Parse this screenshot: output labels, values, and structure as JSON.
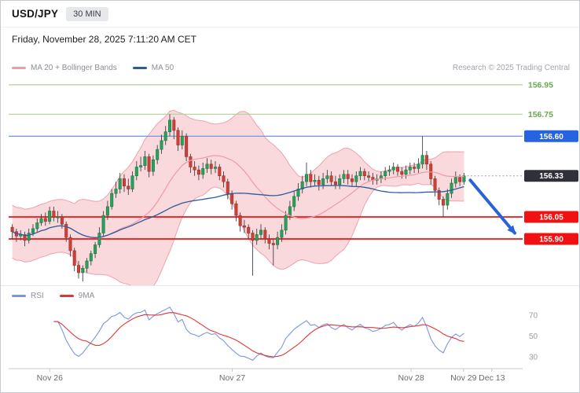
{
  "header": {
    "symbol": "USD/JPY",
    "timeframe": "30 MIN",
    "datetime": "Friday, November 28, 2025 7:11:20 AM CET"
  },
  "legend": {
    "ma20_label": "MA 20 + Bollinger Bands",
    "ma50_label": "MA 50",
    "copyright": "Research © 2025 Trading Central"
  },
  "rsi_legend": {
    "rsi_label": "RSI",
    "ma_label": "9MA"
  },
  "colors": {
    "up": "#2aa05b",
    "up_stroke": "#157a43",
    "down": "#cf4036",
    "down_stroke": "#9c2f27",
    "wick": "#3f4145",
    "ma20": "#ef9aa5",
    "ma50": "#2c5c9c",
    "band_fill": "#f3aab4",
    "band_edge": "#eda2ad",
    "rsi": "#7c96de",
    "rsi_ma": "#e23535",
    "axis": "#c6c8d0",
    "grid_text": "#9a9ba2",
    "dotted": "#9ba1a9",
    "arrow": "#2b62d6"
  },
  "chart_data": {
    "type": "candlestick",
    "symbol": "USD/JPY",
    "interval": "30 MIN",
    "y_range": [
      155.584,
      157.014
    ],
    "current_price": {
      "value": 156.33,
      "label": "156.33",
      "badge_color": "#30303a"
    },
    "levels": [
      {
        "value": 156.95,
        "label": "156.95",
        "type": "resistance",
        "label_style": "text",
        "line_color": "#b3d394",
        "text_color": "#6aa84f",
        "line_width": 1.2
      },
      {
        "value": 156.75,
        "label": "156.75",
        "type": "resistance",
        "label_style": "text",
        "line_color": "#b3d394",
        "text_color": "#6aa84f",
        "line_width": 1.2
      },
      {
        "value": 156.6,
        "label": "156.60",
        "type": "resistance",
        "label_style": "badge",
        "line_color": "#7b9be4",
        "badge_color": "#2563e0",
        "line_width": 1.4
      },
      {
        "value": 156.05,
        "label": "156.05",
        "type": "support",
        "label_style": "badge",
        "line_color": "#f01212",
        "badge_color": "#f01212",
        "line_width": 1.8
      },
      {
        "value": 155.9,
        "label": "155.90",
        "type": "support",
        "label_style": "badge",
        "line_color": "#f01212",
        "badge_color": "#f01212",
        "line_width": 1.8
      }
    ],
    "arrow": {
      "direction": "down",
      "from_price": 156.3,
      "to_price": 155.94
    },
    "x_axis": {
      "labels": [
        "Nov 26",
        "Nov 27",
        "Nov 28",
        "Nov 29",
        "Dec 13"
      ],
      "positions": [
        0.08,
        0.435,
        0.783,
        0.885,
        0.94
      ]
    },
    "indicators": {
      "ma20_period": 20,
      "ma50_period": 50,
      "bollinger_mult": 2,
      "rsi_period": 14,
      "rsi_ma_period": 9
    },
    "rsi_ticks": [
      70,
      50,
      30
    ],
    "candles": [
      [
        155.98,
        156.0,
        155.9,
        155.95
      ],
      [
        155.95,
        155.97,
        155.88,
        155.92
      ],
      [
        155.92,
        155.96,
        155.89,
        155.93
      ],
      [
        155.93,
        155.95,
        155.85,
        155.89
      ],
      [
        155.89,
        155.97,
        155.87,
        155.94
      ],
      [
        155.94,
        156.0,
        155.92,
        155.97
      ],
      [
        155.97,
        156.04,
        155.95,
        156.01
      ],
      [
        156.01,
        156.07,
        155.99,
        156.04
      ],
      [
        156.04,
        156.08,
        155.99,
        156.02
      ],
      [
        156.02,
        156.12,
        156.0,
        156.09
      ],
      [
        156.09,
        156.12,
        156.02,
        156.05
      ],
      [
        156.05,
        156.09,
        156.01,
        156.05
      ],
      [
        156.05,
        156.07,
        155.97,
        156.0
      ],
      [
        156.0,
        156.02,
        155.88,
        155.91
      ],
      [
        155.91,
        155.93,
        155.78,
        155.82
      ],
      [
        155.82,
        155.84,
        155.68,
        155.72
      ],
      [
        155.72,
        155.75,
        155.63,
        155.67
      ],
      [
        155.67,
        155.72,
        155.61,
        155.7
      ],
      [
        155.7,
        155.77,
        155.67,
        155.75
      ],
      [
        155.75,
        155.82,
        155.72,
        155.8
      ],
      [
        155.8,
        155.88,
        155.77,
        155.86
      ],
      [
        155.86,
        155.98,
        155.84,
        155.94
      ],
      [
        155.94,
        156.09,
        155.92,
        156.06
      ],
      [
        156.06,
        156.16,
        156.03,
        156.12
      ],
      [
        156.12,
        156.24,
        156.1,
        156.21
      ],
      [
        156.21,
        156.29,
        156.18,
        156.24
      ],
      [
        156.24,
        156.35,
        156.21,
        156.31
      ],
      [
        156.31,
        156.34,
        156.22,
        156.26
      ],
      [
        156.26,
        156.31,
        156.2,
        156.24
      ],
      [
        156.24,
        156.36,
        156.22,
        156.33
      ],
      [
        156.33,
        156.43,
        156.3,
        156.39
      ],
      [
        156.39,
        156.46,
        156.36,
        156.4
      ],
      [
        156.4,
        156.5,
        156.37,
        156.46
      ],
      [
        156.46,
        156.48,
        156.32,
        156.36
      ],
      [
        156.36,
        156.47,
        156.33,
        156.44
      ],
      [
        156.44,
        156.54,
        156.41,
        156.51
      ],
      [
        156.51,
        156.61,
        156.48,
        156.57
      ],
      [
        156.57,
        156.67,
        156.54,
        156.63
      ],
      [
        156.63,
        156.75,
        156.6,
        156.71
      ],
      [
        156.71,
        156.73,
        156.58,
        156.64
      ],
      [
        156.64,
        156.66,
        156.5,
        156.54
      ],
      [
        156.54,
        156.64,
        156.51,
        156.6
      ],
      [
        156.6,
        156.62,
        156.43,
        156.46
      ],
      [
        156.46,
        156.48,
        156.35,
        156.39
      ],
      [
        156.39,
        156.43,
        156.33,
        156.37
      ],
      [
        156.37,
        156.4,
        156.3,
        156.34
      ],
      [
        156.34,
        156.42,
        156.31,
        156.38
      ],
      [
        156.38,
        156.45,
        156.35,
        156.41
      ],
      [
        156.41,
        156.44,
        156.34,
        156.38
      ],
      [
        156.38,
        156.43,
        156.35,
        156.39
      ],
      [
        156.39,
        156.41,
        156.3,
        156.33
      ],
      [
        156.33,
        156.36,
        156.25,
        156.29
      ],
      [
        156.29,
        156.31,
        156.17,
        156.21
      ],
      [
        156.21,
        156.23,
        156.1,
        156.14
      ],
      [
        156.14,
        156.16,
        156.02,
        156.06
      ],
      [
        156.06,
        156.08,
        155.95,
        155.99
      ],
      [
        155.99,
        156.03,
        155.94,
        155.98
      ],
      [
        155.98,
        156.0,
        155.9,
        155.94
      ],
      [
        155.94,
        155.96,
        155.65,
        155.89
      ],
      [
        155.89,
        155.97,
        155.86,
        155.93
      ],
      [
        155.93,
        156.0,
        155.9,
        155.96
      ],
      [
        155.96,
        155.98,
        155.87,
        155.9
      ],
      [
        155.9,
        155.93,
        155.83,
        155.87
      ],
      [
        155.87,
        155.9,
        155.72,
        155.86
      ],
      [
        155.86,
        155.95,
        155.83,
        155.91
      ],
      [
        155.91,
        156.0,
        155.88,
        155.96
      ],
      [
        155.96,
        156.09,
        155.93,
        156.06
      ],
      [
        156.06,
        156.16,
        156.03,
        156.12
      ],
      [
        156.12,
        156.23,
        156.09,
        156.19
      ],
      [
        156.19,
        156.28,
        156.16,
        156.24
      ],
      [
        156.24,
        156.33,
        156.21,
        156.29
      ],
      [
        156.29,
        156.42,
        156.26,
        156.34
      ],
      [
        156.34,
        156.37,
        156.25,
        156.29
      ],
      [
        156.29,
        156.34,
        156.26,
        156.3
      ],
      [
        156.3,
        156.33,
        156.23,
        156.27
      ],
      [
        156.27,
        156.35,
        156.24,
        156.31
      ],
      [
        156.31,
        156.37,
        156.28,
        156.33
      ],
      [
        156.33,
        156.36,
        156.26,
        156.29
      ],
      [
        156.29,
        156.33,
        156.24,
        156.27
      ],
      [
        156.27,
        156.34,
        156.24,
        156.31
      ],
      [
        156.31,
        156.37,
        156.28,
        156.34
      ],
      [
        156.34,
        156.37,
        156.27,
        156.31
      ],
      [
        156.31,
        156.34,
        156.26,
        156.29
      ],
      [
        156.29,
        156.36,
        156.26,
        156.33
      ],
      [
        156.33,
        156.39,
        156.3,
        156.36
      ],
      [
        156.36,
        156.38,
        156.3,
        156.33
      ],
      [
        156.33,
        156.36,
        156.29,
        156.32
      ],
      [
        156.32,
        156.35,
        156.27,
        156.3
      ],
      [
        156.3,
        156.34,
        156.27,
        156.31
      ],
      [
        156.31,
        156.36,
        156.28,
        156.33
      ],
      [
        156.33,
        156.39,
        156.3,
        156.36
      ],
      [
        156.36,
        156.4,
        156.33,
        156.37
      ],
      [
        156.37,
        156.42,
        156.34,
        156.39
      ],
      [
        156.39,
        156.41,
        156.33,
        156.36
      ],
      [
        156.36,
        156.39,
        156.31,
        156.34
      ],
      [
        156.34,
        156.4,
        156.31,
        156.37
      ],
      [
        156.37,
        156.42,
        156.34,
        156.39
      ],
      [
        156.39,
        156.42,
        156.35,
        156.38
      ],
      [
        156.38,
        156.45,
        156.35,
        156.41
      ],
      [
        156.41,
        156.6,
        156.38,
        156.47
      ],
      [
        156.47,
        156.5,
        156.37,
        156.41
      ],
      [
        156.41,
        156.43,
        156.27,
        156.31
      ],
      [
        156.31,
        156.33,
        156.19,
        156.23
      ],
      [
        156.23,
        156.25,
        156.13,
        156.17
      ],
      [
        156.17,
        156.19,
        156.05,
        156.13
      ],
      [
        156.13,
        156.24,
        156.1,
        156.21
      ],
      [
        156.21,
        156.31,
        156.18,
        156.28
      ],
      [
        156.28,
        156.36,
        156.25,
        156.32
      ],
      [
        156.32,
        156.34,
        156.26,
        156.29
      ],
      [
        156.29,
        156.35,
        156.27,
        156.33
      ]
    ]
  }
}
